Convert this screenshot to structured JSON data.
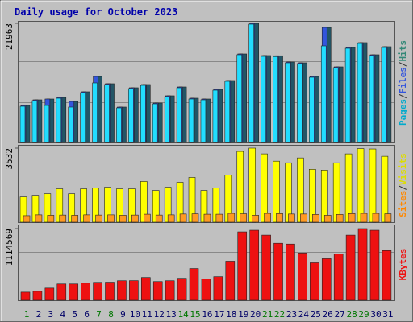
{
  "title": "Daily usage for October 2023",
  "chart_data": [
    {
      "type": "bar",
      "categories": [
        "1",
        "2",
        "3",
        "4",
        "5",
        "6",
        "7",
        "8",
        "9",
        "10",
        "11",
        "12",
        "13",
        "14",
        "15",
        "16",
        "17",
        "18",
        "19",
        "20",
        "21",
        "22",
        "23",
        "24",
        "25",
        "26",
        "27",
        "28",
        "29",
        "30",
        "31"
      ],
      "category_colors": [
        "#007700",
        "#000066",
        "#000066",
        "#000066",
        "#000066",
        "#000066",
        "#007700",
        "#007700",
        "#000066",
        "#000066",
        "#000066",
        "#000066",
        "#000066",
        "#007700",
        "#007700",
        "#000066",
        "#000066",
        "#000066",
        "#000066",
        "#000066",
        "#007700",
        "#007700",
        "#000066",
        "#000066",
        "#000066",
        "#000066",
        "#000066",
        "#007700",
        "#007700",
        "#000066",
        "#000066"
      ],
      "ylim": [
        0,
        21963
      ],
      "yticks": [
        21963
      ],
      "legend_separator": "/",
      "series": [
        {
          "name": "Pages",
          "color": "#22ddff",
          "text_color": "#00aacc",
          "values": [
            6678,
            7717,
            6826,
            8162,
            6530,
            9201,
            10982,
            10685,
            6381,
            9943,
            10536,
            7123,
            8459,
            10091,
            8014,
            7865,
            9646,
            11278,
            16176,
            21815,
            15879,
            15840,
            14692,
            14543,
            12020,
            17808,
            13801,
            17363,
            18253,
            16027,
            17511
          ]
        },
        {
          "name": "Files",
          "color": "#3355dd",
          "text_color": "#3355dd",
          "values": [
            6828,
            7867,
            8014,
            8312,
            7568,
            9351,
            12169,
            10835,
            6531,
            10093,
            10686,
            7273,
            8609,
            10241,
            8164,
            8015,
            9796,
            11428,
            16326,
            21963,
            16029,
            15990,
            14842,
            14693,
            12170,
            21221,
            13951,
            17513,
            18403,
            16177,
            17661
          ]
        },
        {
          "name": "Hits",
          "color": "#225566",
          "text_color": "#338877",
          "values": [
            6828,
            7867,
            8014,
            8312,
            7568,
            9351,
            12169,
            10835,
            6531,
            10093,
            10686,
            7273,
            8609,
            10241,
            8164,
            8015,
            9796,
            11428,
            16326,
            21963,
            16029,
            15990,
            14842,
            14693,
            12170,
            21221,
            13951,
            17513,
            18403,
            16177,
            17661
          ]
        }
      ]
    },
    {
      "type": "bar",
      "ylim": [
        0,
        3532
      ],
      "yticks": [
        3532
      ],
      "series": [
        {
          "name": "Sites",
          "color": "#ff9922",
          "text_color": "#ff8800",
          "values": [
            310,
            350,
            330,
            340,
            330,
            350,
            340,
            350,
            330,
            340,
            380,
            340,
            350,
            390,
            400,
            380,
            380,
            420,
            400,
            330,
            420,
            410,
            390,
            390,
            370,
            330,
            370,
            410,
            420,
            420,
            400
          ]
        },
        {
          "name": "Visits",
          "color": "#ffff00",
          "text_color": "#dddd00",
          "values": [
            1203,
            1280,
            1358,
            1591,
            1358,
            1591,
            1630,
            1668,
            1591,
            1591,
            1940,
            1513,
            1668,
            1901,
            2134,
            1513,
            1630,
            2250,
            3376,
            3532,
            3259,
            2910,
            2832,
            3065,
            2522,
            2483,
            2832,
            3259,
            3510,
            3492,
            3143
          ]
        }
      ]
    },
    {
      "type": "bar",
      "ylim": [
        0,
        1114569
      ],
      "yticks": [
        1114569
      ],
      "series": [
        {
          "name": "KBytes",
          "color": "#ee1111",
          "text_color": "#ee1111",
          "values": [
            126650,
            139315,
            189975,
            253300,
            253300,
            265965,
            278630,
            281200,
            303960,
            305100,
            354620,
            291295,
            303960,
            341955,
            493935,
            329290,
            367285,
            607920,
            1063860,
            1089190,
            1013200,
            886550,
            873885,
            734570,
            582590,
            645915,
            721905,
            1013200,
            1114569,
            1089190,
            772565
          ]
        }
      ]
    }
  ]
}
